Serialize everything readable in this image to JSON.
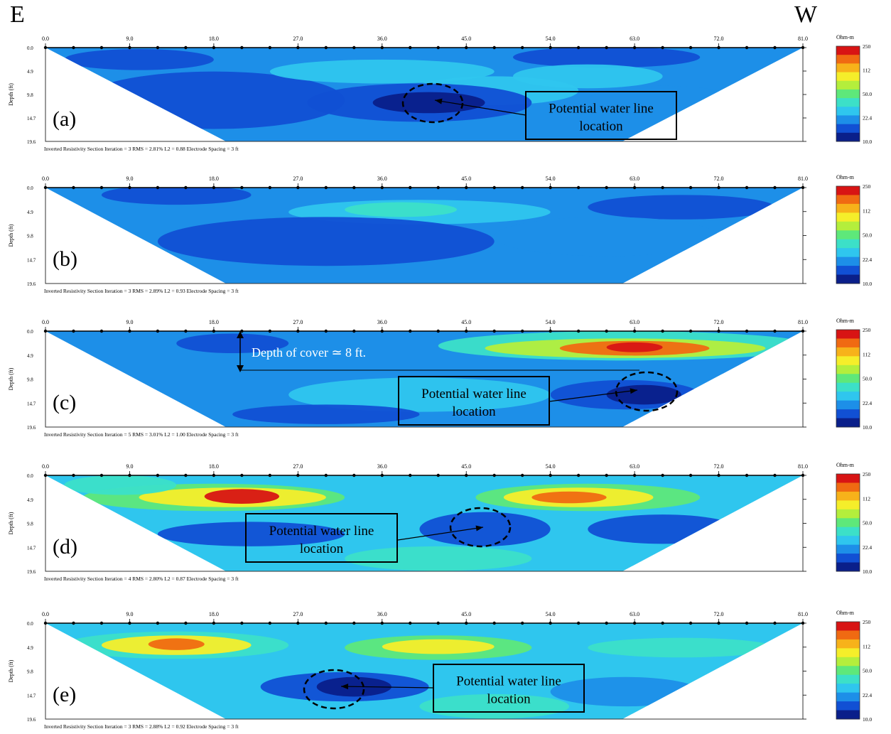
{
  "direction_left": "E",
  "direction_right": "W",
  "x_tick_labels": [
    "0.0",
    "9.0",
    "18.0",
    "27.0",
    "36.0",
    "45.0",
    "54.0",
    "63.0",
    "72.0",
    "81.0"
  ],
  "y_tick_labels": [
    "0.0",
    "4.9",
    "9.8",
    "14.7",
    "19.6"
  ],
  "y_axis_label": "Depth (ft)",
  "colorbar_title": "Ohm-m",
  "colorbar_ticks": [
    "250",
    "112",
    "50.0",
    "22.4",
    "10.0"
  ],
  "colors": {
    "scale": [
      "#0a1f8a",
      "#1150d4",
      "#1d8fe8",
      "#2fc6ee",
      "#3ce0c8",
      "#5ee87a",
      "#b4ee3c",
      "#f5ee2a",
      "#f7b21a",
      "#f06a12",
      "#d81414"
    ],
    "annotation_box": "#000000",
    "background": "#ffffff"
  },
  "chart_data": [
    {
      "type": "heatmap",
      "panel_label": "(a)",
      "x": [
        0,
        81
      ],
      "y_depth": [
        0,
        19.6
      ],
      "caption": "Inverted Resistivity Section     Iteration = 3    RMS = 2.81%    L2 = 0.88    Electrode Spacing = 3 ft",
      "annotations": [
        {
          "text_line1": "Potential water line",
          "text_line2": "location"
        }
      ],
      "features": [
        {
          "x": 40,
          "depth": 11.2,
          "rx": 12,
          "rdepth": 3.5,
          "ohm_m": 11
        },
        {
          "x": 40,
          "depth": 12,
          "rx": 6,
          "rdepth": 2,
          "ohm_m": 10
        }
      ],
      "background_ohm_m": 20
    },
    {
      "type": "heatmap",
      "panel_label": "(b)",
      "x": [
        0,
        81
      ],
      "y_depth": [
        0,
        19.6
      ],
      "caption": "Inverted Resistivity Section     Iteration = 3    RMS = 2.89%    L2 = 0.93    Electrode Spacing = 3 ft",
      "annotations": [],
      "background_ohm_m": 19
    },
    {
      "type": "heatmap",
      "panel_label": "(c)",
      "x": [
        0,
        81
      ],
      "y_depth": [
        0,
        19.6
      ],
      "caption": "Inverted Resistivity Section     Iteration = 5    RMS = 3.01%    L2 = 1.00    Electrode Spacing = 3 ft",
      "annotations": [
        {
          "text": "Depth of cover ≃ 8 ft."
        },
        {
          "text_line1": "Potential water line",
          "text_line2": "location"
        }
      ],
      "background_ohm_m": 22
    },
    {
      "type": "heatmap",
      "panel_label": "(d)",
      "x": [
        0,
        81
      ],
      "y_depth": [
        0,
        19.6
      ],
      "caption": "Inverted Resistivity Section     Iteration = 4    RMS = 2.80%    L2 = 0.87    Electrode Spacing = 3 ft",
      "annotations": [
        {
          "text_line1": "Potential water line",
          "text_line2": "location"
        }
      ],
      "background_ohm_m": 24
    },
    {
      "type": "heatmap",
      "panel_label": "(e)",
      "x": [
        0,
        81
      ],
      "y_depth": [
        0,
        19.6
      ],
      "caption": "Inverted Resistivity Section     Iteration = 3    RMS = 2.88%    L2 = 0.92    Electrode Spacing = 3 ft",
      "annotations": [
        {
          "text_line1": "Potential water line",
          "text_line2": "location"
        }
      ],
      "background_ohm_m": 26
    }
  ]
}
